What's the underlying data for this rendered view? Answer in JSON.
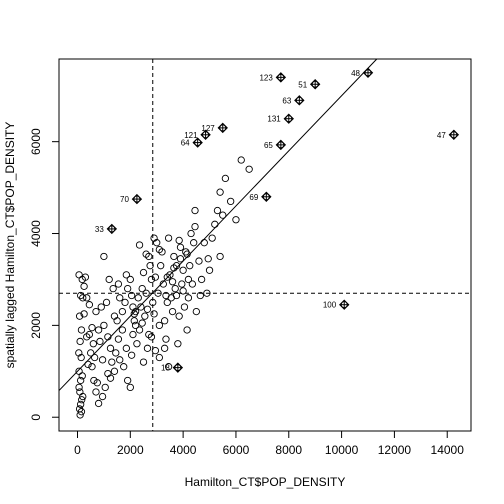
{
  "chart_data": {
    "type": "scatter",
    "xlabel": "Hamilton_CT$POP_DENSITY",
    "ylabel": "spatially lagged Hamilton_CT$POP_DENSITY",
    "xlim": [
      -700,
      14900
    ],
    "ylim": [
      -300,
      7800
    ],
    "x_ticks": [
      0,
      2000,
      4000,
      6000,
      8000,
      10000,
      12000,
      14000
    ],
    "y_ticks": [
      0,
      2000,
      4000,
      6000
    ],
    "mean_x": 2850,
    "mean_y": 2700,
    "regression_line": {
      "intercept": 1000,
      "slope": 0.6
    },
    "influential_points": [
      {
        "label": "48",
        "x": 11000,
        "y": 7500
      },
      {
        "label": "123",
        "x": 7700,
        "y": 7400
      },
      {
        "label": "51",
        "x": 9000,
        "y": 7250
      },
      {
        "label": "63",
        "x": 8400,
        "y": 6900
      },
      {
        "label": "131",
        "x": 8000,
        "y": 6500
      },
      {
        "label": "127",
        "x": 5500,
        "y": 6300
      },
      {
        "label": "121",
        "x": 4850,
        "y": 6150
      },
      {
        "label": "64",
        "x": 4550,
        "y": 5980
      },
      {
        "label": "65",
        "x": 7700,
        "y": 5930
      },
      {
        "label": "47",
        "x": 14250,
        "y": 6150
      },
      {
        "label": "69",
        "x": 7150,
        "y": 4800
      },
      {
        "label": "70",
        "x": 2250,
        "y": 4750
      },
      {
        "label": "33",
        "x": 1300,
        "y": 4100
      },
      {
        "label": "100",
        "x": 10100,
        "y": 2450
      },
      {
        "label": "18",
        "x": 3800,
        "y": 1080
      }
    ],
    "points": [
      [
        100,
        50
      ],
      [
        150,
        120
      ],
      [
        80,
        180
      ],
      [
        120,
        280
      ],
      [
        160,
        380
      ],
      [
        200,
        450
      ],
      [
        90,
        550
      ],
      [
        60,
        650
      ],
      [
        120,
        800
      ],
      [
        180,
        900
      ],
      [
        60,
        1000
      ],
      [
        140,
        1300
      ],
      [
        50,
        1400
      ],
      [
        100,
        1650
      ],
      [
        150,
        1900
      ],
      [
        80,
        2200
      ],
      [
        120,
        2650
      ],
      [
        200,
        2600
      ],
      [
        60,
        3100
      ],
      [
        180,
        3000
      ],
      [
        250,
        2250
      ],
      [
        350,
        2600
      ],
      [
        450,
        1800
      ],
      [
        500,
        1400
      ],
      [
        550,
        1100
      ],
      [
        620,
        800
      ],
      [
        700,
        550
      ],
      [
        800,
        300
      ],
      [
        950,
        450
      ],
      [
        1050,
        650
      ],
      [
        1150,
        950
      ],
      [
        1250,
        850
      ],
      [
        1300,
        1200
      ],
      [
        1400,
        1000
      ],
      [
        1450,
        1400
      ],
      [
        1550,
        1700
      ],
      [
        1600,
        1250
      ],
      [
        1700,
        1900
      ],
      [
        1750,
        1100
      ],
      [
        1850,
        1500
      ],
      [
        1900,
        800
      ],
      [
        2000,
        650
      ],
      [
        2050,
        1350
      ],
      [
        2100,
        1800
      ],
      [
        2150,
        2100
      ],
      [
        2200,
        2300
      ],
      [
        2250,
        1600
      ],
      [
        2300,
        2600
      ],
      [
        2350,
        1900
      ],
      [
        2400,
        2400
      ],
      [
        2450,
        2800
      ],
      [
        2500,
        3150
      ],
      [
        2550,
        2200
      ],
      [
        2600,
        2700
      ],
      [
        2650,
        1500
      ],
      [
        2700,
        3500
      ],
      [
        2750,
        3300
      ],
      [
        2800,
        3000
      ],
      [
        2850,
        2500
      ],
      [
        2900,
        2250
      ],
      [
        2950,
        3050
      ],
      [
        3000,
        3800
      ],
      [
        3050,
        2700
      ],
      [
        3100,
        2000
      ],
      [
        3150,
        3300
      ],
      [
        3200,
        3600
      ],
      [
        3250,
        2900
      ],
      [
        3300,
        2100
      ],
      [
        3350,
        1700
      ],
      [
        3400,
        2500
      ],
      [
        3450,
        3900
      ],
      [
        3500,
        3100
      ],
      [
        3550,
        2600
      ],
      [
        3600,
        2300
      ],
      [
        3650,
        3500
      ],
      [
        3700,
        2800
      ],
      [
        3750,
        3300
      ],
      [
        3800,
        1600
      ],
      [
        3850,
        2200
      ],
      [
        3900,
        3700
      ],
      [
        3950,
        2900
      ],
      [
        4000,
        3200
      ],
      [
        4050,
        2400
      ],
      [
        4100,
        3600
      ],
      [
        4150,
        1900
      ],
      [
        4200,
        2600
      ],
      [
        4250,
        3300
      ],
      [
        4300,
        4000
      ],
      [
        4350,
        2900
      ],
      [
        4400,
        3800
      ],
      [
        4450,
        4500
      ],
      [
        4500,
        2300
      ],
      [
        4600,
        3400
      ],
      [
        4700,
        3000
      ],
      [
        4800,
        3800
      ],
      [
        4900,
        2700
      ],
      [
        5000,
        3200
      ],
      [
        5100,
        3900
      ],
      [
        5200,
        4200
      ],
      [
        5300,
        4500
      ],
      [
        5400,
        3500
      ],
      [
        5500,
        4400
      ],
      [
        5600,
        5200
      ],
      [
        5800,
        4700
      ],
      [
        6000,
        4300
      ],
      [
        6200,
        5600
      ],
      [
        6500,
        5400
      ],
      [
        1200,
        3000
      ],
      [
        1400,
        2200
      ],
      [
        1000,
        2000
      ],
      [
        900,
        2400
      ],
      [
        800,
        1900
      ],
      [
        700,
        2300
      ],
      [
        600,
        1600
      ],
      [
        1800,
        2500
      ],
      [
        1900,
        2800
      ],
      [
        2000,
        3000
      ],
      [
        2100,
        2400
      ],
      [
        2200,
        2000
      ],
      [
        1700,
        2300
      ],
      [
        1600,
        2600
      ],
      [
        1500,
        2100
      ],
      [
        1350,
        2800
      ],
      [
        1100,
        2500
      ],
      [
        1000,
        3500
      ],
      [
        2350,
        3750
      ],
      [
        2600,
        3550
      ],
      [
        2900,
        3900
      ],
      [
        3100,
        3650
      ],
      [
        3400,
        3050
      ],
      [
        3600,
        2950
      ],
      [
        3750,
        2650
      ],
      [
        3900,
        3450
      ],
      [
        4000,
        2750
      ],
      [
        4200,
        3000
      ],
      [
        2500,
        1200
      ],
      [
        2700,
        1800
      ],
      [
        3100,
        1300
      ],
      [
        3300,
        1500
      ],
      [
        3450,
        1100
      ],
      [
        2800,
        1750
      ],
      [
        2950,
        1450
      ],
      [
        1550,
        2900
      ],
      [
        2150,
        2250
      ],
      [
        1850,
        3100
      ],
      [
        2050,
        2650
      ],
      [
        2450,
        2050
      ],
      [
        2650,
        2350
      ],
      [
        3350,
        2650
      ],
      [
        3650,
        3250
      ],
      [
        3850,
        3850
      ],
      [
        4150,
        3550
      ],
      [
        4450,
        4150
      ],
      [
        4650,
        2650
      ],
      [
        4950,
        3450
      ],
      [
        1250,
        1500
      ],
      [
        1150,
        1750
      ],
      [
        950,
        1250
      ],
      [
        850,
        1650
      ],
      [
        750,
        750
      ],
      [
        650,
        1300
      ],
      [
        550,
        1950
      ],
      [
        450,
        2450
      ],
      [
        350,
        1750
      ],
      [
        250,
        2850
      ],
      [
        300,
        3050
      ],
      [
        400,
        1150
      ],
      [
        5400,
        4900
      ]
    ]
  }
}
